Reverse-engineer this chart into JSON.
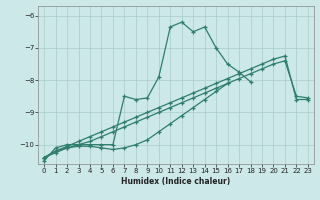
{
  "xlabel": "Humidex (Indice chaleur)",
  "xlim": [
    -0.5,
    23.5
  ],
  "ylim": [
    -10.6,
    -5.7
  ],
  "yticks": [
    -10,
    -9,
    -8,
    -7,
    -6
  ],
  "xticks": [
    0,
    1,
    2,
    3,
    4,
    5,
    6,
    7,
    8,
    9,
    10,
    11,
    12,
    13,
    14,
    15,
    16,
    17,
    18,
    19,
    20,
    21,
    22,
    23
  ],
  "bg_color": "#cce8e8",
  "line_color": "#2e7d6e",
  "grid_color": "#aacccc",
  "lines": [
    {
      "x": [
        0,
        1,
        2,
        3,
        4,
        5,
        6,
        7,
        8,
        9,
        10,
        11,
        12,
        13,
        14,
        15,
        16,
        17,
        18,
        19,
        20,
        21,
        22,
        23
      ],
      "y": [
        -10.5,
        -10.1,
        -10.0,
        -10.0,
        -10.0,
        -10.0,
        -10.0,
        -8.5,
        -8.6,
        -8.55,
        -7.9,
        -6.35,
        -6.2,
        -6.5,
        -6.35,
        -7.0,
        -7.5,
        -7.75,
        -8.05,
        null,
        null,
        null,
        null,
        null
      ]
    },
    {
      "x": [
        0,
        1,
        2,
        3,
        4,
        5,
        6,
        7,
        8,
        9,
        10,
        11,
        12,
        13,
        14,
        15,
        16,
        17,
        18,
        19,
        20,
        21,
        22,
        23
      ],
      "y": [
        -10.4,
        -10.2,
        -10.1,
        -10.05,
        -10.05,
        -10.1,
        -10.15,
        -10.1,
        -10.0,
        -9.85,
        -9.6,
        -9.35,
        -9.1,
        -8.85,
        -8.6,
        -8.35,
        -8.1,
        null,
        null,
        null,
        null,
        null,
        null,
        null
      ]
    },
    {
      "x": [
        0,
        1,
        2,
        3,
        4,
        5,
        6,
        7,
        8,
        9,
        10,
        11,
        12,
        13,
        14,
        15,
        16,
        17,
        18,
        19,
        20,
        21,
        22,
        23
      ],
      "y": [
        -10.4,
        -10.25,
        -10.1,
        -10.0,
        -9.9,
        -9.75,
        -9.6,
        -9.45,
        -9.3,
        -9.15,
        -9.0,
        -8.85,
        -8.7,
        -8.55,
        -8.4,
        -8.25,
        -8.1,
        -7.95,
        -7.8,
        -7.65,
        -7.5,
        -7.4,
        -8.5,
        -8.55
      ]
    },
    {
      "x": [
        0,
        1,
        2,
        3,
        4,
        5,
        6,
        7,
        8,
        9,
        10,
        11,
        12,
        13,
        14,
        15,
        16,
        17,
        18,
        19,
        20,
        21,
        22,
        23
      ],
      "y": [
        -10.4,
        -10.2,
        -10.05,
        -9.9,
        -9.75,
        -9.6,
        -9.45,
        -9.3,
        -9.15,
        -9.0,
        -8.85,
        -8.7,
        -8.55,
        -8.4,
        -8.25,
        -8.1,
        -7.95,
        -7.8,
        -7.65,
        -7.5,
        -7.35,
        -7.25,
        -8.6,
        -8.6
      ]
    }
  ]
}
